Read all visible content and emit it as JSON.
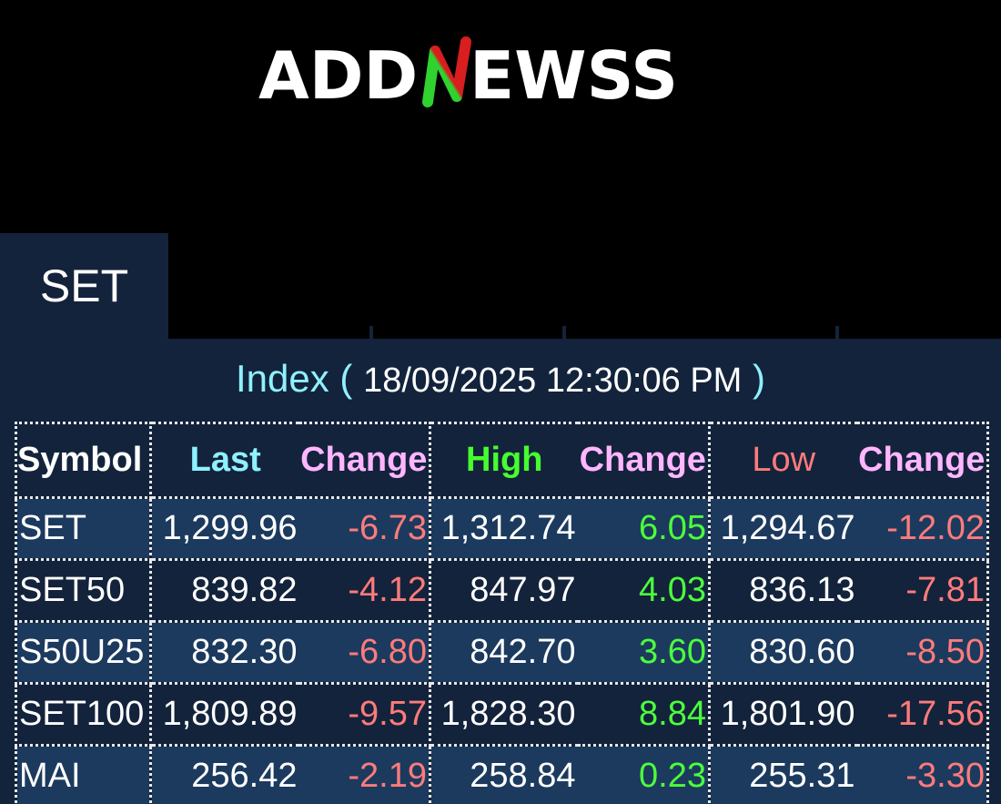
{
  "brand": {
    "logo_text_left": "ADD",
    "logo_text_right": "EWSS",
    "logo_full": "ADDNEWSS",
    "accent_green": "#2fd22f",
    "accent_red": "#d81e1e"
  },
  "tab": {
    "label": "SET"
  },
  "index": {
    "label": "Index",
    "open_paren": "(",
    "timestamp": "18/09/2025 12:30:06 PM",
    "close_paren": ")"
  },
  "table": {
    "headers": {
      "symbol": "Symbol",
      "last": "Last",
      "last_change": "Change",
      "high": "High",
      "high_change": "Change",
      "low": "Low",
      "low_change": "Change"
    },
    "rows": [
      {
        "symbol": "SET",
        "last": "1,299.96",
        "last_change": "-6.73",
        "high": "1,312.74",
        "high_change": "6.05",
        "low": "1,294.67",
        "low_change": "-12.02"
      },
      {
        "symbol": "SET50",
        "last": "839.82",
        "last_change": "-4.12",
        "high": "847.97",
        "high_change": "4.03",
        "low": "836.13",
        "low_change": "-7.81"
      },
      {
        "symbol": "S50U25",
        "last": "832.30",
        "last_change": "-6.80",
        "high": "842.70",
        "high_change": "3.60",
        "low": "830.60",
        "low_change": "-8.50"
      },
      {
        "symbol": "SET100",
        "last": "1,809.89",
        "last_change": "-9.57",
        "high": "1,828.30",
        "high_change": "8.84",
        "low": "1,801.90",
        "low_change": "-17.56"
      },
      {
        "symbol": "MAI",
        "last": "256.42",
        "last_change": "-2.19",
        "high": "258.84",
        "high_change": "0.23",
        "low": "255.31",
        "low_change": "-3.30"
      }
    ]
  },
  "colors": {
    "background": "#000000",
    "panel": "#13233b",
    "row_alt": "#1c3a5e",
    "negative": "#ff7b7b",
    "positive": "#4cff3c",
    "cyan_label": "#8ff0ff",
    "pink_label": "#ffb6ff"
  }
}
